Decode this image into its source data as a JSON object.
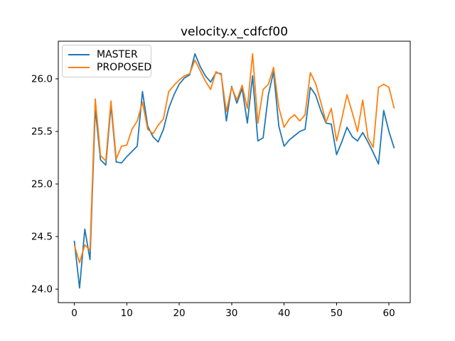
{
  "figure": {
    "background": "#ffffff"
  },
  "chart_data": {
    "type": "line",
    "title": "velocity.x_cdfcf00",
    "xlabel": "",
    "ylabel": "",
    "grid": false,
    "legend_position": "upper-left",
    "line_width": 1.8,
    "xlim": [
      -3.05,
      64.05
    ],
    "ylim": [
      23.87,
      26.36
    ],
    "x_ticks": [
      0,
      10,
      20,
      30,
      40,
      50,
      60
    ],
    "x_tick_labels": [
      "0",
      "10",
      "20",
      "30",
      "40",
      "50",
      "60"
    ],
    "y_ticks": [
      24.0,
      24.5,
      25.0,
      25.5,
      26.0
    ],
    "y_tick_labels": [
      "24.0",
      "24.5",
      "25.0",
      "25.5",
      "26.0"
    ],
    "x": [
      0,
      1,
      2,
      3,
      4,
      5,
      6,
      7,
      8,
      9,
      10,
      11,
      12,
      13,
      14,
      15,
      16,
      17,
      18,
      19,
      20,
      21,
      22,
      23,
      24,
      25,
      26,
      27,
      28,
      29,
      30,
      31,
      32,
      33,
      34,
      35,
      36,
      37,
      38,
      39,
      40,
      41,
      42,
      43,
      44,
      45,
      46,
      47,
      48,
      49,
      50,
      51,
      52,
      53,
      54,
      55,
      56,
      57,
      58,
      59,
      60,
      61
    ],
    "series": [
      {
        "name": "MASTER",
        "color": "#1f77b4",
        "values": [
          24.46,
          24.01,
          24.57,
          24.28,
          25.72,
          25.23,
          25.18,
          25.75,
          25.21,
          25.2,
          25.26,
          25.31,
          25.36,
          25.88,
          25.55,
          25.45,
          25.4,
          25.52,
          25.72,
          25.85,
          25.95,
          26.01,
          26.04,
          26.24,
          26.12,
          26.03,
          25.97,
          26.06,
          26.05,
          25.6,
          25.93,
          25.77,
          25.91,
          25.58,
          26.03,
          25.41,
          25.44,
          25.85,
          26.07,
          25.55,
          25.36,
          25.42,
          25.46,
          25.5,
          25.52,
          25.92,
          25.85,
          25.7,
          25.58,
          25.57,
          25.28,
          25.4,
          25.54,
          25.45,
          25.41,
          25.49,
          25.4,
          25.3,
          25.19,
          25.7,
          25.5,
          25.34
        ]
      },
      {
        "name": "PROPOSED",
        "color": "#ff7f0e",
        "values": [
          24.42,
          24.25,
          24.42,
          24.37,
          25.81,
          25.27,
          25.22,
          25.79,
          25.24,
          25.36,
          25.37,
          25.52,
          25.6,
          25.78,
          25.52,
          25.48,
          25.56,
          25.62,
          25.88,
          25.94,
          25.99,
          26.03,
          26.05,
          26.18,
          26.08,
          25.98,
          25.9,
          26.07,
          26.04,
          25.69,
          25.92,
          25.8,
          25.94,
          25.72,
          26.24,
          25.58,
          25.9,
          25.95,
          26.11,
          25.73,
          25.54,
          25.62,
          25.66,
          25.6,
          25.66,
          26.06,
          25.96,
          25.78,
          25.59,
          25.72,
          25.41,
          25.62,
          25.85,
          25.68,
          25.5,
          25.8,
          25.44,
          25.35,
          25.92,
          25.95,
          25.92,
          25.72
        ]
      }
    ]
  }
}
